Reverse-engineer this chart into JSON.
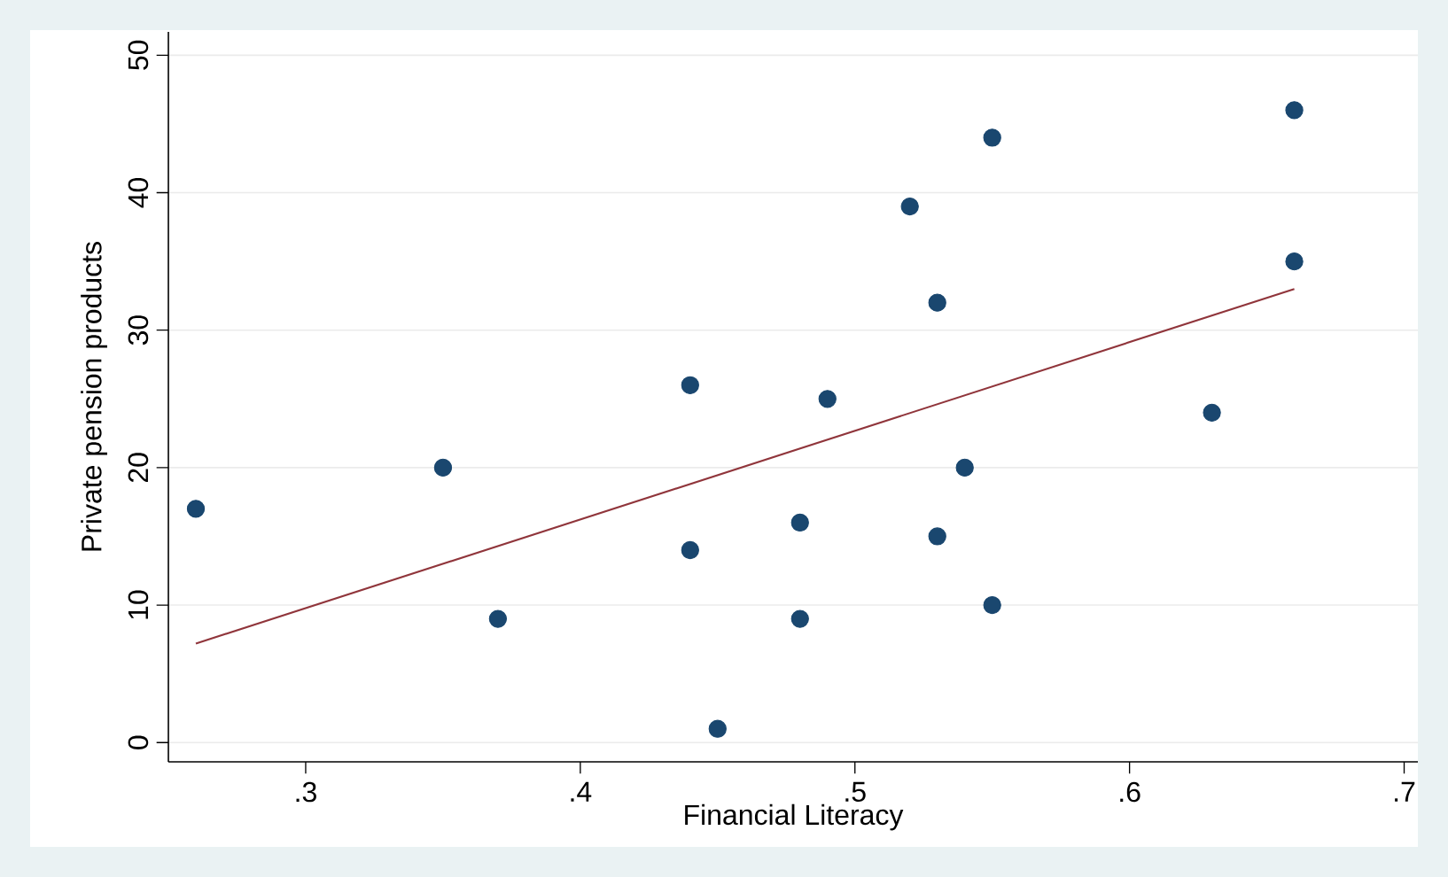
{
  "chart_data": {
    "type": "scatter",
    "xlabel": "Financial Literacy",
    "ylabel": "Private pension products",
    "xlim": [
      0.25,
      0.705
    ],
    "ylim": [
      -1.4,
      51.7
    ],
    "xticks": [
      {
        "value": 0.3,
        "label": ".3"
      },
      {
        "value": 0.4,
        "label": ".4"
      },
      {
        "value": 0.5,
        "label": ".5"
      },
      {
        "value": 0.6,
        "label": ".6"
      },
      {
        "value": 0.7,
        "label": ".7"
      }
    ],
    "yticks": [
      0,
      10,
      20,
      30,
      40,
      50
    ],
    "grid": "y",
    "series": [
      {
        "marker": "circle",
        "color": "#1a476f",
        "x": [
          0.26,
          0.35,
          0.37,
          0.44,
          0.44,
          0.45,
          0.48,
          0.48,
          0.49,
          0.52,
          0.53,
          0.53,
          0.54,
          0.55,
          0.55,
          0.63,
          0.66,
          0.66
        ],
        "values": [
          17,
          20,
          9,
          26,
          14,
          1,
          16,
          9,
          25,
          39,
          32,
          15,
          20,
          44,
          10,
          24,
          46,
          35
        ]
      },
      {
        "type": "line",
        "marker": "none",
        "color": "#90353b",
        "line_style": "solid",
        "x": [
          0.26,
          0.66
        ],
        "values": [
          7.2,
          33.0
        ]
      }
    ]
  }
}
